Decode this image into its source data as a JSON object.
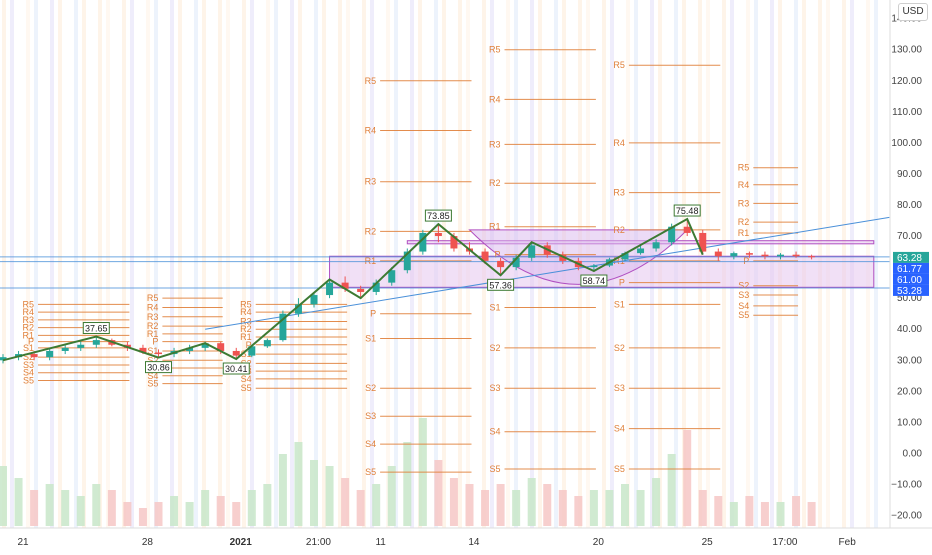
{
  "currency_button": "USD",
  "colors": {
    "up": "#26a69a",
    "down": "#ef5350",
    "pivot": "#e0803a",
    "zigzag": "#3d7a33",
    "trendline": "#4a90d9",
    "rect_fill": "#e6c6ef",
    "rect_stroke": "#b04fc1",
    "badge_green": "#26a69a",
    "badge_blue": "#2962ff"
  },
  "price_axis": {
    "ticks": [
      "140.00",
      "130.00",
      "120.00",
      "110.00",
      "100.00",
      "90.00",
      "80.00",
      "70.00",
      "50.00",
      "40.00",
      "30.00",
      "20.00",
      "10.00",
      "0.00",
      "−10.00",
      "−20.00"
    ],
    "badges": [
      {
        "label": "63.28",
        "price": 63.28,
        "style": "green"
      },
      {
        "label": "61.77",
        "price": 61.77,
        "style": "blue"
      },
      {
        "label": "61.00",
        "price": 61.0,
        "style": "blue"
      },
      {
        "label": "53.28",
        "price": 53.28,
        "style": "blue"
      }
    ]
  },
  "time_axis": {
    "labels": [
      {
        "label": "21",
        "bar": 0,
        "bold": false
      },
      {
        "label": "28",
        "bar": 8,
        "bold": false
      },
      {
        "label": "2021",
        "bar": 14,
        "bold": true
      },
      {
        "label": "21:00",
        "bar": 19,
        "bold": false
      },
      {
        "label": "11",
        "bar": 23,
        "bold": false
      },
      {
        "label": "14",
        "bar": 29,
        "bold": false
      },
      {
        "label": "20",
        "bar": 37,
        "bold": false
      },
      {
        "label": "25",
        "bar": 44,
        "bold": false
      },
      {
        "label": "17:00",
        "bar": 49,
        "bold": false
      },
      {
        "label": "Feb",
        "bar": 53,
        "bold": false
      }
    ]
  },
  "chart_data": {
    "type": "candlestick",
    "y_range": [
      -24,
      146
    ],
    "log_scale": false,
    "grid": false,
    "candles": [
      {
        "o": 30,
        "h": 32,
        "l": 29,
        "c": 31
      },
      {
        "o": 31,
        "h": 33,
        "l": 30,
        "c": 32
      },
      {
        "o": 32,
        "h": 33,
        "l": 30,
        "c": 31
      },
      {
        "o": 31,
        "h": 34,
        "l": 30,
        "c": 33
      },
      {
        "o": 33,
        "h": 35,
        "l": 32,
        "c": 34
      },
      {
        "o": 34,
        "h": 36,
        "l": 33,
        "c": 35
      },
      {
        "o": 35,
        "h": 37.6,
        "l": 34,
        "c": 36.5
      },
      {
        "o": 36.5,
        "h": 37,
        "l": 34.5,
        "c": 35
      },
      {
        "o": 35,
        "h": 36,
        "l": 33,
        "c": 34
      },
      {
        "o": 34,
        "h": 35,
        "l": 32,
        "c": 32.5
      },
      {
        "o": 32.5,
        "h": 33.5,
        "l": 30.9,
        "c": 32
      },
      {
        "o": 32,
        "h": 34,
        "l": 31,
        "c": 33
      },
      {
        "o": 33,
        "h": 35,
        "l": 32,
        "c": 34
      },
      {
        "o": 34,
        "h": 36,
        "l": 33,
        "c": 35.5
      },
      {
        "o": 35.5,
        "h": 36,
        "l": 32,
        "c": 33
      },
      {
        "o": 33,
        "h": 34,
        "l": 30.4,
        "c": 31.5
      },
      {
        "o": 31.5,
        "h": 35,
        "l": 31,
        "c": 34.5
      },
      {
        "o": 34.5,
        "h": 37,
        "l": 34,
        "c": 36.5
      },
      {
        "o": 36.5,
        "h": 46,
        "l": 36,
        "c": 45
      },
      {
        "o": 45,
        "h": 50,
        "l": 44,
        "c": 48
      },
      {
        "o": 48,
        "h": 52,
        "l": 47,
        "c": 51
      },
      {
        "o": 51,
        "h": 56,
        "l": 50,
        "c": 55
      },
      {
        "o": 55,
        "h": 57,
        "l": 52,
        "c": 53
      },
      {
        "o": 53,
        "h": 54,
        "l": 50,
        "c": 52
      },
      {
        "o": 52,
        "h": 56,
        "l": 51,
        "c": 55
      },
      {
        "o": 55,
        "h": 60,
        "l": 54,
        "c": 59
      },
      {
        "o": 59,
        "h": 66,
        "l": 58,
        "c": 65
      },
      {
        "o": 65,
        "h": 72,
        "l": 64,
        "c": 71
      },
      {
        "o": 71,
        "h": 73.8,
        "l": 68,
        "c": 70
      },
      {
        "o": 70,
        "h": 71,
        "l": 65,
        "c": 66
      },
      {
        "o": 66,
        "h": 68,
        "l": 64,
        "c": 65
      },
      {
        "o": 65,
        "h": 66,
        "l": 61,
        "c": 62
      },
      {
        "o": 62,
        "h": 63,
        "l": 57.4,
        "c": 60
      },
      {
        "o": 60,
        "h": 64,
        "l": 59,
        "c": 63
      },
      {
        "o": 63,
        "h": 68,
        "l": 62,
        "c": 67
      },
      {
        "o": 67,
        "h": 68,
        "l": 63,
        "c": 64
      },
      {
        "o": 64,
        "h": 65,
        "l": 61,
        "c": 62
      },
      {
        "o": 62,
        "h": 63,
        "l": 59,
        "c": 60
      },
      {
        "o": 60,
        "h": 61,
        "l": 58.7,
        "c": 60.5
      },
      {
        "o": 60.5,
        "h": 63,
        "l": 60,
        "c": 62.5
      },
      {
        "o": 62.5,
        "h": 65,
        "l": 62,
        "c": 64.5
      },
      {
        "o": 64.5,
        "h": 67,
        "l": 64,
        "c": 66
      },
      {
        "o": 66,
        "h": 69,
        "l": 65,
        "c": 68
      },
      {
        "o": 68,
        "h": 74,
        "l": 67,
        "c": 73
      },
      {
        "o": 73,
        "h": 75.5,
        "l": 70,
        "c": 71
      },
      {
        "o": 71,
        "h": 72,
        "l": 64,
        "c": 65
      },
      {
        "o": 65,
        "h": 66,
        "l": 62,
        "c": 63.5
      },
      {
        "o": 63.5,
        "h": 65,
        "l": 62.5,
        "c": 64.5
      },
      {
        "o": 64.5,
        "h": 65,
        "l": 63,
        "c": 64
      },
      {
        "o": 64,
        "h": 65,
        "l": 62.5,
        "c": 63.5
      },
      {
        "o": 63.5,
        "h": 64.5,
        "l": 62.5,
        "c": 64
      },
      {
        "o": 64,
        "h": 65,
        "l": 63,
        "c": 63.5
      },
      {
        "o": 63.5,
        "h": 64,
        "l": 62.5,
        "c": 63.28
      }
    ],
    "volume_rel": [
      0.5,
      0.4,
      0.3,
      0.35,
      0.3,
      0.25,
      0.35,
      0.3,
      0.2,
      0.15,
      0.2,
      0.25,
      0.2,
      0.3,
      0.25,
      0.2,
      0.3,
      0.35,
      0.6,
      0.7,
      0.55,
      0.5,
      0.4,
      0.3,
      0.35,
      0.5,
      0.7,
      0.9,
      0.55,
      0.4,
      0.35,
      0.3,
      0.35,
      0.3,
      0.4,
      0.35,
      0.3,
      0.25,
      0.3,
      0.3,
      0.35,
      0.3,
      0.4,
      0.6,
      0.8,
      0.3,
      0.25,
      0.2,
      0.25,
      0.2,
      0.2,
      0.25,
      0.2
    ],
    "zigzag": [
      {
        "bar": 0,
        "price": 30,
        "label": ""
      },
      {
        "bar": 6,
        "price": 37.65,
        "label": "37.65"
      },
      {
        "bar": 10,
        "price": 30.86,
        "label": "30.86"
      },
      {
        "bar": 13,
        "price": 35.5,
        "label": ""
      },
      {
        "bar": 15,
        "price": 30.41,
        "label": "30.41"
      },
      {
        "bar": 21,
        "price": 56,
        "label": ""
      },
      {
        "bar": 23,
        "price": 50,
        "label": ""
      },
      {
        "bar": 28,
        "price": 73.85,
        "label": "73.85"
      },
      {
        "bar": 32,
        "price": 57.36,
        "label": "57.36"
      },
      {
        "bar": 34,
        "price": 68,
        "label": ""
      },
      {
        "bar": 38,
        "price": 58.74,
        "label": "58.74"
      },
      {
        "bar": 44,
        "price": 75.48,
        "label": "75.48"
      },
      {
        "bar": 45,
        "price": 64,
        "label": ""
      }
    ],
    "pivot_sets": [
      {
        "x_from": 0,
        "x_to": 8,
        "levels": [
          [
            "R5",
            48
          ],
          [
            "R4",
            45.5
          ],
          [
            "R3",
            43
          ],
          [
            "R2",
            40.5
          ],
          [
            "R1",
            38
          ],
          [
            "P",
            36
          ],
          [
            "S1",
            34
          ],
          [
            "S2",
            31
          ],
          [
            "S3",
            28.5
          ],
          [
            "S4",
            26
          ],
          [
            "S5",
            23.5
          ]
        ]
      },
      {
        "x_from": 8,
        "x_to": 14,
        "levels": [
          [
            "R5",
            50
          ],
          [
            "R4",
            47
          ],
          [
            "R3",
            44
          ],
          [
            "R2",
            41
          ],
          [
            "R1",
            38.5
          ],
          [
            "P",
            36
          ],
          [
            "S1",
            33
          ],
          [
            "S2",
            30
          ],
          [
            "S3",
            27.5
          ],
          [
            "S4",
            25
          ],
          [
            "S5",
            22.5
          ]
        ]
      },
      {
        "x_from": 14,
        "x_to": 22,
        "levels": [
          [
            "R5",
            48
          ],
          [
            "R4",
            45.5
          ],
          [
            "R3",
            42.5
          ],
          [
            "R2",
            40
          ],
          [
            "R1",
            37.5
          ],
          [
            "P",
            35
          ],
          [
            "S1",
            32
          ],
          [
            "S2",
            29
          ],
          [
            "S3",
            26.5
          ],
          [
            "S4",
            24
          ],
          [
            "S5",
            21
          ]
        ]
      },
      {
        "x_from": 22,
        "x_to": 30,
        "levels": [
          [
            "R5",
            120
          ],
          [
            "R4",
            104
          ],
          [
            "R3",
            87.5
          ],
          [
            "R2",
            71.5
          ],
          [
            "R1",
            62
          ],
          [
            "P",
            45
          ],
          [
            "S1",
            37
          ],
          [
            "S2",
            21
          ],
          [
            "S3",
            12
          ],
          [
            "S4",
            3
          ],
          [
            "S5",
            -6
          ]
        ]
      },
      {
        "x_from": 30,
        "x_to": 38,
        "levels": [
          [
            "R5",
            130
          ],
          [
            "R4",
            114
          ],
          [
            "R3",
            99.5
          ],
          [
            "R2",
            87
          ],
          [
            "R1",
            73
          ],
          [
            "P",
            64
          ],
          [
            "S1",
            47
          ],
          [
            "S2",
            34
          ],
          [
            "S3",
            21
          ],
          [
            "S4",
            7
          ],
          [
            "S5",
            -5
          ]
        ]
      },
      {
        "x_from": 38,
        "x_to": 46,
        "levels": [
          [
            "R5",
            125
          ],
          [
            "R4",
            100
          ],
          [
            "R3",
            84
          ],
          [
            "R2",
            72
          ],
          [
            "R1",
            62
          ],
          [
            "P",
            55
          ],
          [
            "S1",
            48
          ],
          [
            "S2",
            34
          ],
          [
            "S3",
            21
          ],
          [
            "S4",
            8
          ],
          [
            "S5",
            -5
          ]
        ]
      },
      {
        "x_from": 46,
        "x_to": 51,
        "levels": [
          [
            "R5",
            92
          ],
          [
            "R4",
            86.5
          ],
          [
            "R3",
            80.5
          ],
          [
            "R2",
            74.5
          ],
          [
            "R1",
            71
          ],
          [
            "P",
            62
          ],
          [
            "S2",
            54
          ],
          [
            "S3",
            51
          ],
          [
            "S4",
            47.5
          ],
          [
            "S5",
            44.5
          ]
        ]
      }
    ],
    "trendline": {
      "from": {
        "bar": 13,
        "price": 40
      },
      "to": {
        "bar": 57,
        "price": 76
      }
    },
    "hlines": [
      63.28,
      61.77,
      53.28
    ],
    "rects": [
      {
        "bar_from": 21,
        "bar_to": 56,
        "top": 63.5,
        "bottom": 53.5
      },
      {
        "bar_from": 26,
        "bar_to": 56,
        "top": 68.5,
        "bottom": 67.5
      }
    ],
    "arc": {
      "bar_from": 30,
      "bar_to": 44,
      "price_top": 72,
      "price_bottom": 53.5
    }
  }
}
